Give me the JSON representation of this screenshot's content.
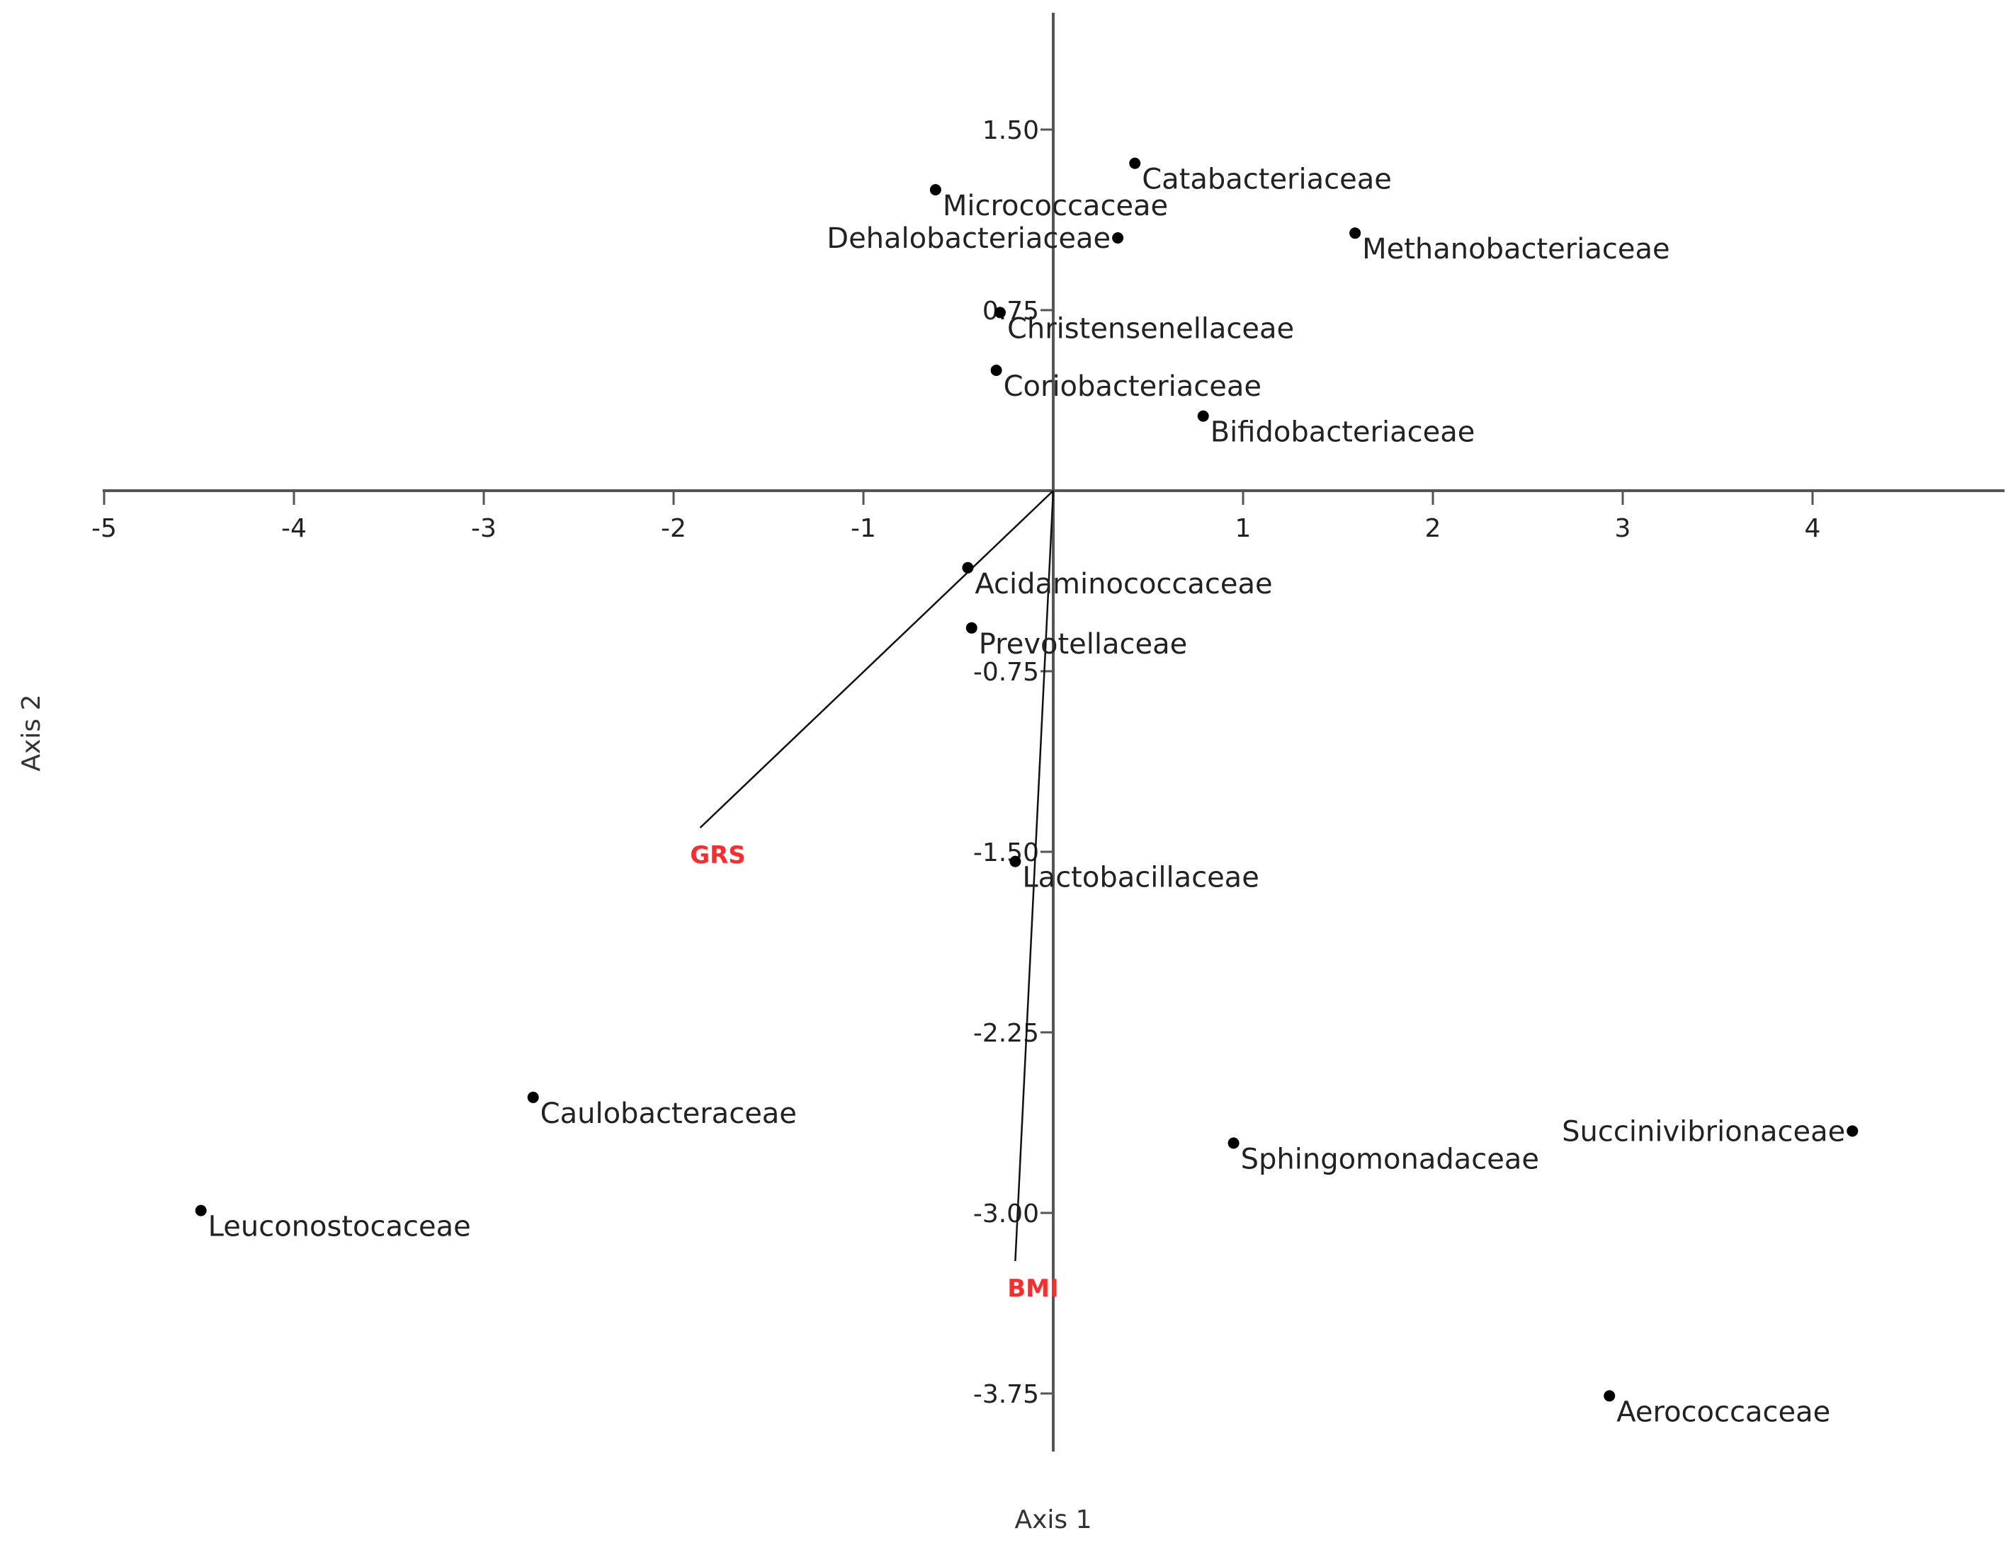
{
  "chart_data": {
    "type": "scatter",
    "title": "",
    "xlabel": "Axis 1",
    "ylabel": "Axis 2",
    "xlim": [
      -5,
      5
    ],
    "ylim": [
      -4.0,
      2.0
    ],
    "x_ticks": [
      -5,
      -4,
      -3,
      -2,
      -1,
      1,
      2,
      3,
      4
    ],
    "x_tick_labels": [
      "-5",
      "-4",
      "-3",
      "-2",
      "-1",
      "1",
      "2",
      "3",
      "4"
    ],
    "y_ticks": [
      1.5,
      0.75,
      -0.75,
      -1.5,
      -2.25,
      -3.0,
      -3.75
    ],
    "y_tick_labels": [
      "1.50",
      "0.75",
      "-0.75",
      "-1.50",
      "-2.25",
      "-3.00",
      "-3.75"
    ],
    "grid": false,
    "points": [
      {
        "label": "Catabacteriaceae",
        "x": 0.43,
        "y": 1.36,
        "label_side": "right"
      },
      {
        "label": "Micrococcaceae",
        "x": -0.62,
        "y": 1.25,
        "label_side": "right"
      },
      {
        "label": "Dehalobacteriaceae",
        "x": 0.34,
        "y": 1.05,
        "label_side": "left"
      },
      {
        "label": "Methanobacteriaceae",
        "x": 1.59,
        "y": 1.07,
        "label_side": "right"
      },
      {
        "label": "Christensenellaceae",
        "x": -0.28,
        "y": 0.74,
        "label_side": "right"
      },
      {
        "label": "Coriobacteriaceae",
        "x": -0.3,
        "y": 0.5,
        "label_side": "right"
      },
      {
        "label": "Bifidobacteriaceae",
        "x": 0.79,
        "y": 0.31,
        "label_side": "right"
      },
      {
        "label": "Acidaminococcaceae",
        "x": -0.45,
        "y": -0.32,
        "label_side": "right"
      },
      {
        "label": "Prevotellaceae",
        "x": -0.43,
        "y": -0.57,
        "label_side": "right"
      },
      {
        "label": "Lactobacillaceae",
        "x": -0.2,
        "y": -1.54,
        "label_side": "right"
      },
      {
        "label": "Caulobacteraceae",
        "x": -2.74,
        "y": -2.52,
        "label_side": "right"
      },
      {
        "label": "Leuconostocaceae",
        "x": -4.49,
        "y": -2.99,
        "label_side": "right"
      },
      {
        "label": "Sphingomonadaceae",
        "x": 0.95,
        "y": -2.71,
        "label_side": "right"
      },
      {
        "label": "Succinivibrionaceae",
        "x": 4.21,
        "y": -2.66,
        "label_side": "left"
      },
      {
        "label": "Aerococcaceae",
        "x": 2.93,
        "y": -3.76,
        "label_side": "right"
      }
    ],
    "vectors": [
      {
        "label": "GRS",
        "x": -1.86,
        "y": -1.4,
        "color": "#ff2b2b"
      },
      {
        "label": "BMI",
        "x": -0.2,
        "y": -3.2,
        "color": "#ff2b2b"
      }
    ]
  }
}
